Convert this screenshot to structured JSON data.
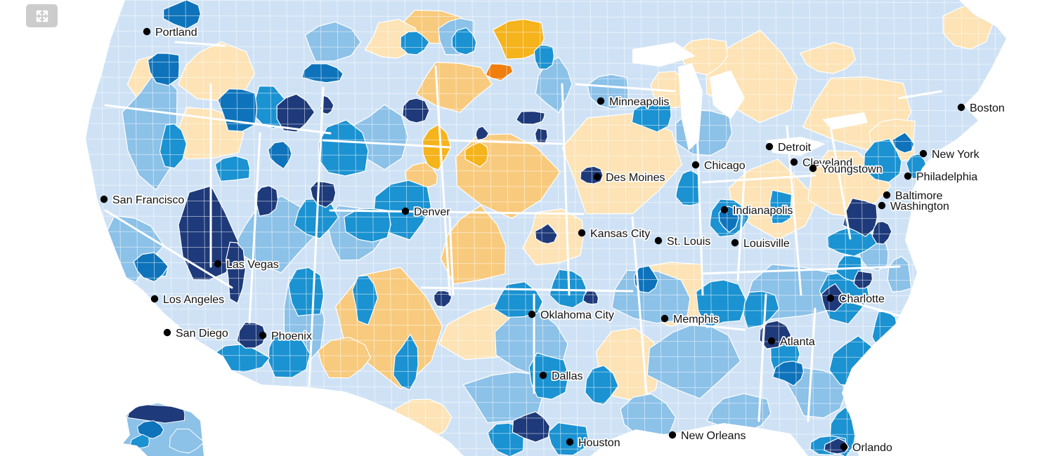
{
  "controls": {
    "fullscreen_icon": "expand-arrows-icon"
  },
  "palette": {
    "very_light_blue": "#cfe2f5",
    "light_blue": "#8cc1e8",
    "medium_blue": "#1b92d1",
    "blue": "#0e73bb",
    "dark_navy": "#1e3a7a",
    "light_tan": "#fde3b5",
    "light_orange": "#f8ca7d",
    "orange": "#f5b31c",
    "dark_orange": "#f07d0c",
    "border": "#ffffff"
  },
  "cities": [
    {
      "name": "Portland"
    },
    {
      "name": "San Francisco"
    },
    {
      "name": "Las Vegas"
    },
    {
      "name": "Los Angeles"
    },
    {
      "name": "San Diego"
    },
    {
      "name": "Phoenix"
    },
    {
      "name": "Denver"
    },
    {
      "name": "Minneapolis"
    },
    {
      "name": "Des Moines"
    },
    {
      "name": "Kansas City"
    },
    {
      "name": "Oklahoma City"
    },
    {
      "name": "Dallas"
    },
    {
      "name": "Houston"
    },
    {
      "name": "Chicago"
    },
    {
      "name": "St. Louis"
    },
    {
      "name": "Memphis"
    },
    {
      "name": "New Orleans"
    },
    {
      "name": "Detroit"
    },
    {
      "name": "Cleveland"
    },
    {
      "name": "Youngstown"
    },
    {
      "name": "Indianapolis"
    },
    {
      "name": "Louisville"
    },
    {
      "name": "Atlanta"
    },
    {
      "name": "Charlotte"
    },
    {
      "name": "Orlando"
    },
    {
      "name": "Boston"
    },
    {
      "name": "New York"
    },
    {
      "name": "Philadelphia"
    },
    {
      "name": "Baltimore"
    },
    {
      "name": "Washington"
    }
  ]
}
